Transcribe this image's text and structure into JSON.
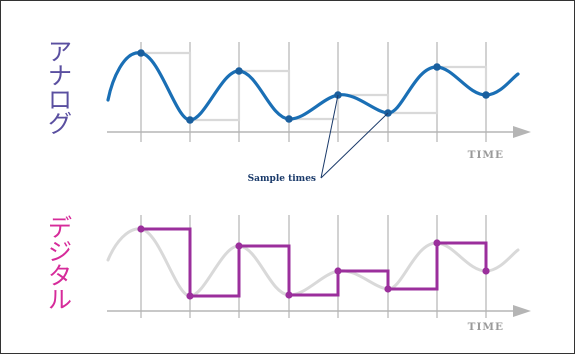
{
  "panels": [
    {
      "id": "analog",
      "label_chars": [
        "ア",
        "ナ",
        "ロ",
        "グ"
      ],
      "label_color": "#5a4fa0",
      "axis_label": "TIME",
      "callout": "Sample times"
    },
    {
      "id": "digital",
      "label_chars": [
        "デ",
        "ジ",
        "タ",
        "ル"
      ],
      "label_color": "#d62b9a",
      "axis_label": "TIME"
    }
  ],
  "colors": {
    "analog_wave": "#1a6fb5",
    "analog_dot": "#1a5f9e",
    "digital_step": "#9b2f9c",
    "ghost_wave": "#d9d9d9",
    "grid": "#b5b5b5",
    "axis": "#b5b5b5",
    "axis_label": "#9a9a9a",
    "callout_text": "#1a3a6a",
    "border": "#333333"
  }
}
